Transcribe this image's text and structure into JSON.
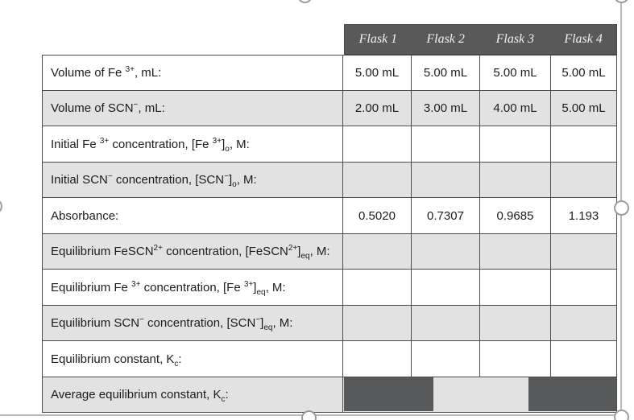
{
  "colors": {
    "header_bg": "#595959",
    "dark_cell": "#58595b",
    "row_band": "#e2e2e3",
    "grid_border": "#4d4d4d",
    "header_text": "#f1f1f1",
    "body_text": "#1c1c1c",
    "selection": "#b8b8b8"
  },
  "table": {
    "column_headers": [
      "Flask 1",
      "Flask 2",
      "Flask 3",
      "Flask 4"
    ],
    "rows": [
      {
        "label": [
          {
            "t": "Volume of Fe "
          },
          {
            "sup": "3+"
          },
          {
            "t": ", mL:"
          }
        ],
        "values": [
          "5.00 mL",
          "5.00 mL",
          "5.00 mL",
          "5.00 mL"
        ],
        "shaded": false
      },
      {
        "label": [
          {
            "t": "Volume of SCN"
          },
          {
            "sup": "−"
          },
          {
            "t": ", mL:"
          }
        ],
        "values": [
          "2.00 mL",
          "3.00 mL",
          "4.00 mL",
          "5.00 mL"
        ],
        "shaded": true
      },
      {
        "label": [
          {
            "t": "Initial Fe "
          },
          {
            "sup": "3+"
          },
          {
            "t": " concentration, [Fe "
          },
          {
            "sup": "3+"
          },
          {
            "t": "]"
          },
          {
            "sub": "o"
          },
          {
            "t": ", M:"
          }
        ],
        "values": [
          "",
          "",
          "",
          ""
        ],
        "shaded": false
      },
      {
        "label": [
          {
            "t": "Initial SCN"
          },
          {
            "sup": "−"
          },
          {
            "t": " concentration, [SCN"
          },
          {
            "sup": "−"
          },
          {
            "t": "]"
          },
          {
            "sub": "o"
          },
          {
            "t": ", M:"
          }
        ],
        "values": [
          "",
          "",
          "",
          ""
        ],
        "shaded": true
      },
      {
        "label": [
          {
            "t": "Absorbance:"
          }
        ],
        "values": [
          "0.5020",
          "0.7307",
          "0.9685",
          "1.193"
        ],
        "shaded": false
      },
      {
        "label": [
          {
            "t": "Equilibrium FeSCN"
          },
          {
            "sup": "2+"
          },
          {
            "t": " concentration, [FeSCN"
          },
          {
            "sup": "2+"
          },
          {
            "t": "]"
          },
          {
            "sub": "eq"
          },
          {
            "t": ", M:"
          }
        ],
        "values": [
          "",
          "",
          "",
          ""
        ],
        "shaded": true
      },
      {
        "label": [
          {
            "t": "Equilibrium Fe "
          },
          {
            "sup": "3+"
          },
          {
            "t": " concentration, [Fe "
          },
          {
            "sup": "3+"
          },
          {
            "t": "]"
          },
          {
            "sub": "eq"
          },
          {
            "t": ", M:"
          }
        ],
        "values": [
          "",
          "",
          "",
          ""
        ],
        "shaded": false
      },
      {
        "label": [
          {
            "t": "Equilibrium SCN"
          },
          {
            "sup": "−"
          },
          {
            "t": " concentration, [SCN"
          },
          {
            "sup": "−"
          },
          {
            "t": "]"
          },
          {
            "sub": "eq"
          },
          {
            "t": ", M:"
          }
        ],
        "values": [
          "",
          "",
          "",
          ""
        ],
        "shaded": true
      },
      {
        "label": [
          {
            "t": "Equilibrium constant, K"
          },
          {
            "sub": "c"
          },
          {
            "t": ":"
          }
        ],
        "values": [
          "",
          "",
          "",
          ""
        ],
        "shaded": false
      },
      {
        "label": [
          {
            "t": "Average equilibrium constant, K"
          },
          {
            "sub": "c"
          },
          {
            "t": ":"
          }
        ],
        "average": true,
        "shaded": true
      }
    ]
  },
  "selection": {
    "handles": [
      "top-center",
      "top-right",
      "left-middle",
      "right-middle",
      "bottom-center",
      "bottom-right"
    ]
  }
}
